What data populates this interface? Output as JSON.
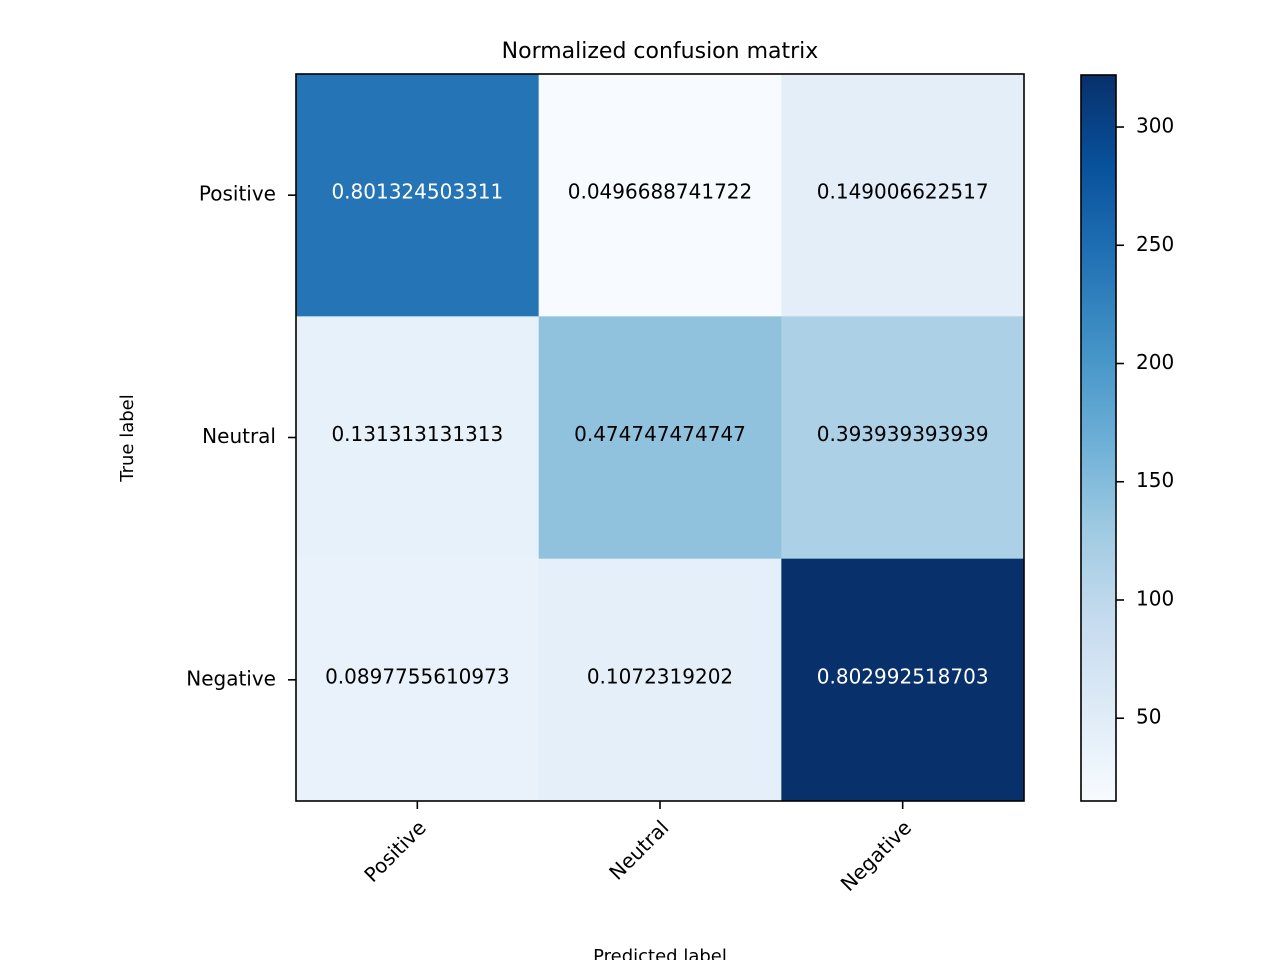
{
  "chart_data": {
    "type": "heatmap",
    "title": "Normalized confusion matrix",
    "xlabel": "Predicted label",
    "ylabel": "True label",
    "x_categories": [
      "Positive",
      "Neutral",
      "Negative"
    ],
    "y_categories": [
      "Positive",
      "Neutral",
      "Negative"
    ],
    "cell_labels": [
      [
        "0.801324503311",
        "0.0496688741722",
        "0.149006622517"
      ],
      [
        "0.131313131313",
        "0.474747474747",
        "0.393939393939"
      ],
      [
        "0.0897755610973",
        "0.1072319202",
        "0.802992518703"
      ]
    ],
    "values": [
      [
        0.801324503311,
        0.0496688741722,
        0.149006622517
      ],
      [
        0.131313131313,
        0.474747474747,
        0.393939393939
      ],
      [
        0.0897755610973,
        0.1072319202,
        0.802992518703
      ]
    ],
    "color_values": [
      [
        242,
        15,
        45
      ],
      [
        39,
        141,
        117
      ],
      [
        36,
        43,
        322
      ]
    ],
    "colorbar": {
      "colormap": "Blues",
      "range": [
        15,
        322
      ],
      "ticks": [
        50,
        100,
        150,
        200,
        250,
        300
      ],
      "tick_labels": [
        "50",
        "100",
        "150",
        "200",
        "250",
        "300"
      ]
    }
  }
}
